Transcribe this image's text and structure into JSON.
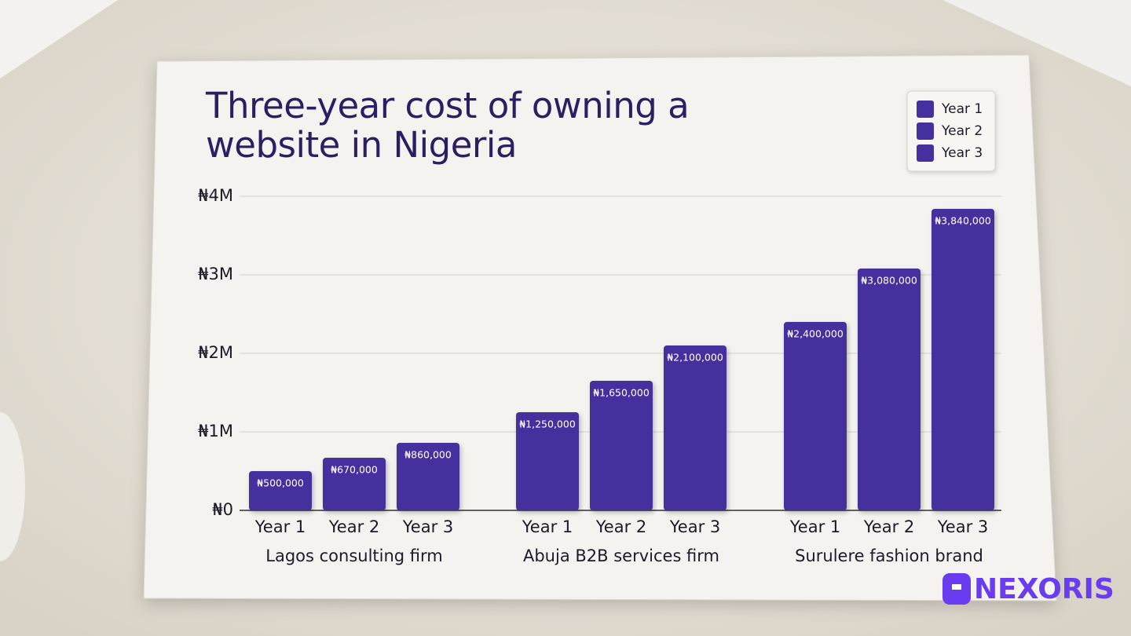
{
  "chart_data": {
    "type": "bar",
    "title": "Three-year cost of owning a website in Nigeria",
    "categories": [
      "Lagos consulting firm",
      "Abuja B2B services firm",
      "Surulere fashion brand"
    ],
    "series": [
      {
        "name": "Year 1",
        "color": "#45309e",
        "values": [
          500000,
          1250000,
          2400000
        ],
        "value_labels": [
          "₦500,000",
          "₦1,250,000",
          "₦2,400,000"
        ]
      },
      {
        "name": "Year 2",
        "color": "#45309e",
        "values": [
          670000,
          1650000,
          3080000
        ],
        "value_labels": [
          "₦670,000",
          "₦1,650,000",
          "₦3,080,000"
        ]
      },
      {
        "name": "Year 3",
        "color": "#45309e",
        "values": [
          860000,
          2100000,
          3840000
        ],
        "value_labels": [
          "₦860,000",
          "₦2,100,000",
          "₦3,840,000"
        ]
      }
    ],
    "ylim": [
      0,
      4000000
    ],
    "yticks": [
      {
        "value": 0,
        "label": "₦0"
      },
      {
        "value": 1000000,
        "label": "₦1M"
      },
      {
        "value": 2000000,
        "label": "₦2M"
      },
      {
        "value": 3000000,
        "label": "₦3M"
      },
      {
        "value": 4000000,
        "label": "₦4M"
      }
    ],
    "grid": true,
    "legend": "top-right"
  },
  "logo": {
    "text": "NEXORIS"
  }
}
